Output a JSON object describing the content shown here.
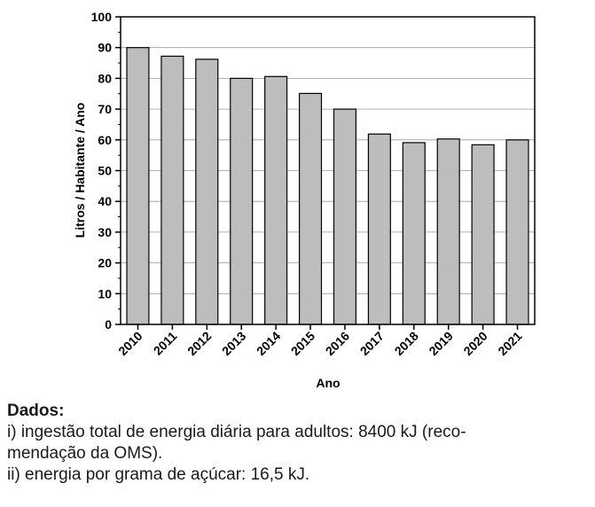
{
  "chart_data": {
    "type": "bar",
    "categories": [
      "2010",
      "2011",
      "2012",
      "2013",
      "2014",
      "2015",
      "2016",
      "2017",
      "2018",
      "2019",
      "2020",
      "2021"
    ],
    "values": [
      90,
      87.2,
      86.2,
      80,
      80.6,
      75.1,
      70,
      61.9,
      59.1,
      60.3,
      58.4,
      60
    ],
    "title": "",
    "xlabel": "Ano",
    "ylabel": "Litros / Habitante / Ano",
    "ylim": [
      0,
      100
    ],
    "yticks": [
      0,
      10,
      20,
      30,
      40,
      50,
      60,
      70,
      80,
      90,
      100
    ],
    "grid": true,
    "bar_color": "#bdbdbd"
  },
  "notes": {
    "heading": "Dados:",
    "line1a": "i) ingestão total de energia diária para adultos: 8400 kJ (reco-",
    "line1b": "mendação da OMS).",
    "line2": "ii) energia por grama de açúcar: 16,5 kJ."
  }
}
